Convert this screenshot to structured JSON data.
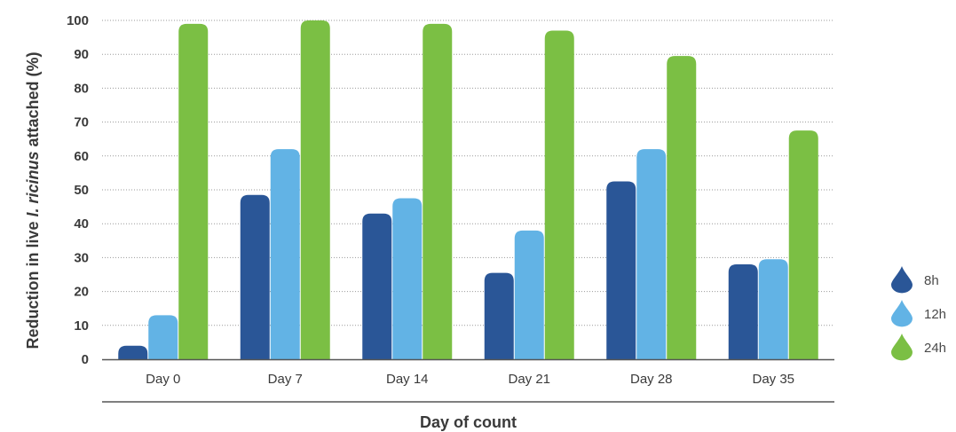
{
  "chart_data": {
    "type": "bar",
    "title": "",
    "xlabel": "Day of count",
    "ylabel_parts": [
      "Reduction in live ",
      "I. ricinus",
      " attached (%)"
    ],
    "categories": [
      "Day 0",
      "Day 7",
      "Day 14",
      "Day 21",
      "Day 28",
      "Day 35"
    ],
    "series": [
      {
        "name": "8h",
        "color": "#2a5697",
        "icon": "drop-icon",
        "values": [
          4,
          48.5,
          43,
          25.5,
          52.5,
          28
        ]
      },
      {
        "name": "12h",
        "color": "#62b3e5",
        "icon": "drop-icon",
        "values": [
          13,
          62,
          47.5,
          38,
          62,
          29.5
        ]
      },
      {
        "name": "24h",
        "color": "#7bbf44",
        "icon": "drop-icon",
        "values": [
          99,
          100,
          99,
          97,
          89.5,
          67.5
        ]
      }
    ],
    "ylim": [
      0,
      100
    ],
    "yticks": [
      0,
      10,
      20,
      30,
      40,
      50,
      60,
      70,
      80,
      90,
      100
    ],
    "grid": true,
    "legend_position": "right"
  }
}
